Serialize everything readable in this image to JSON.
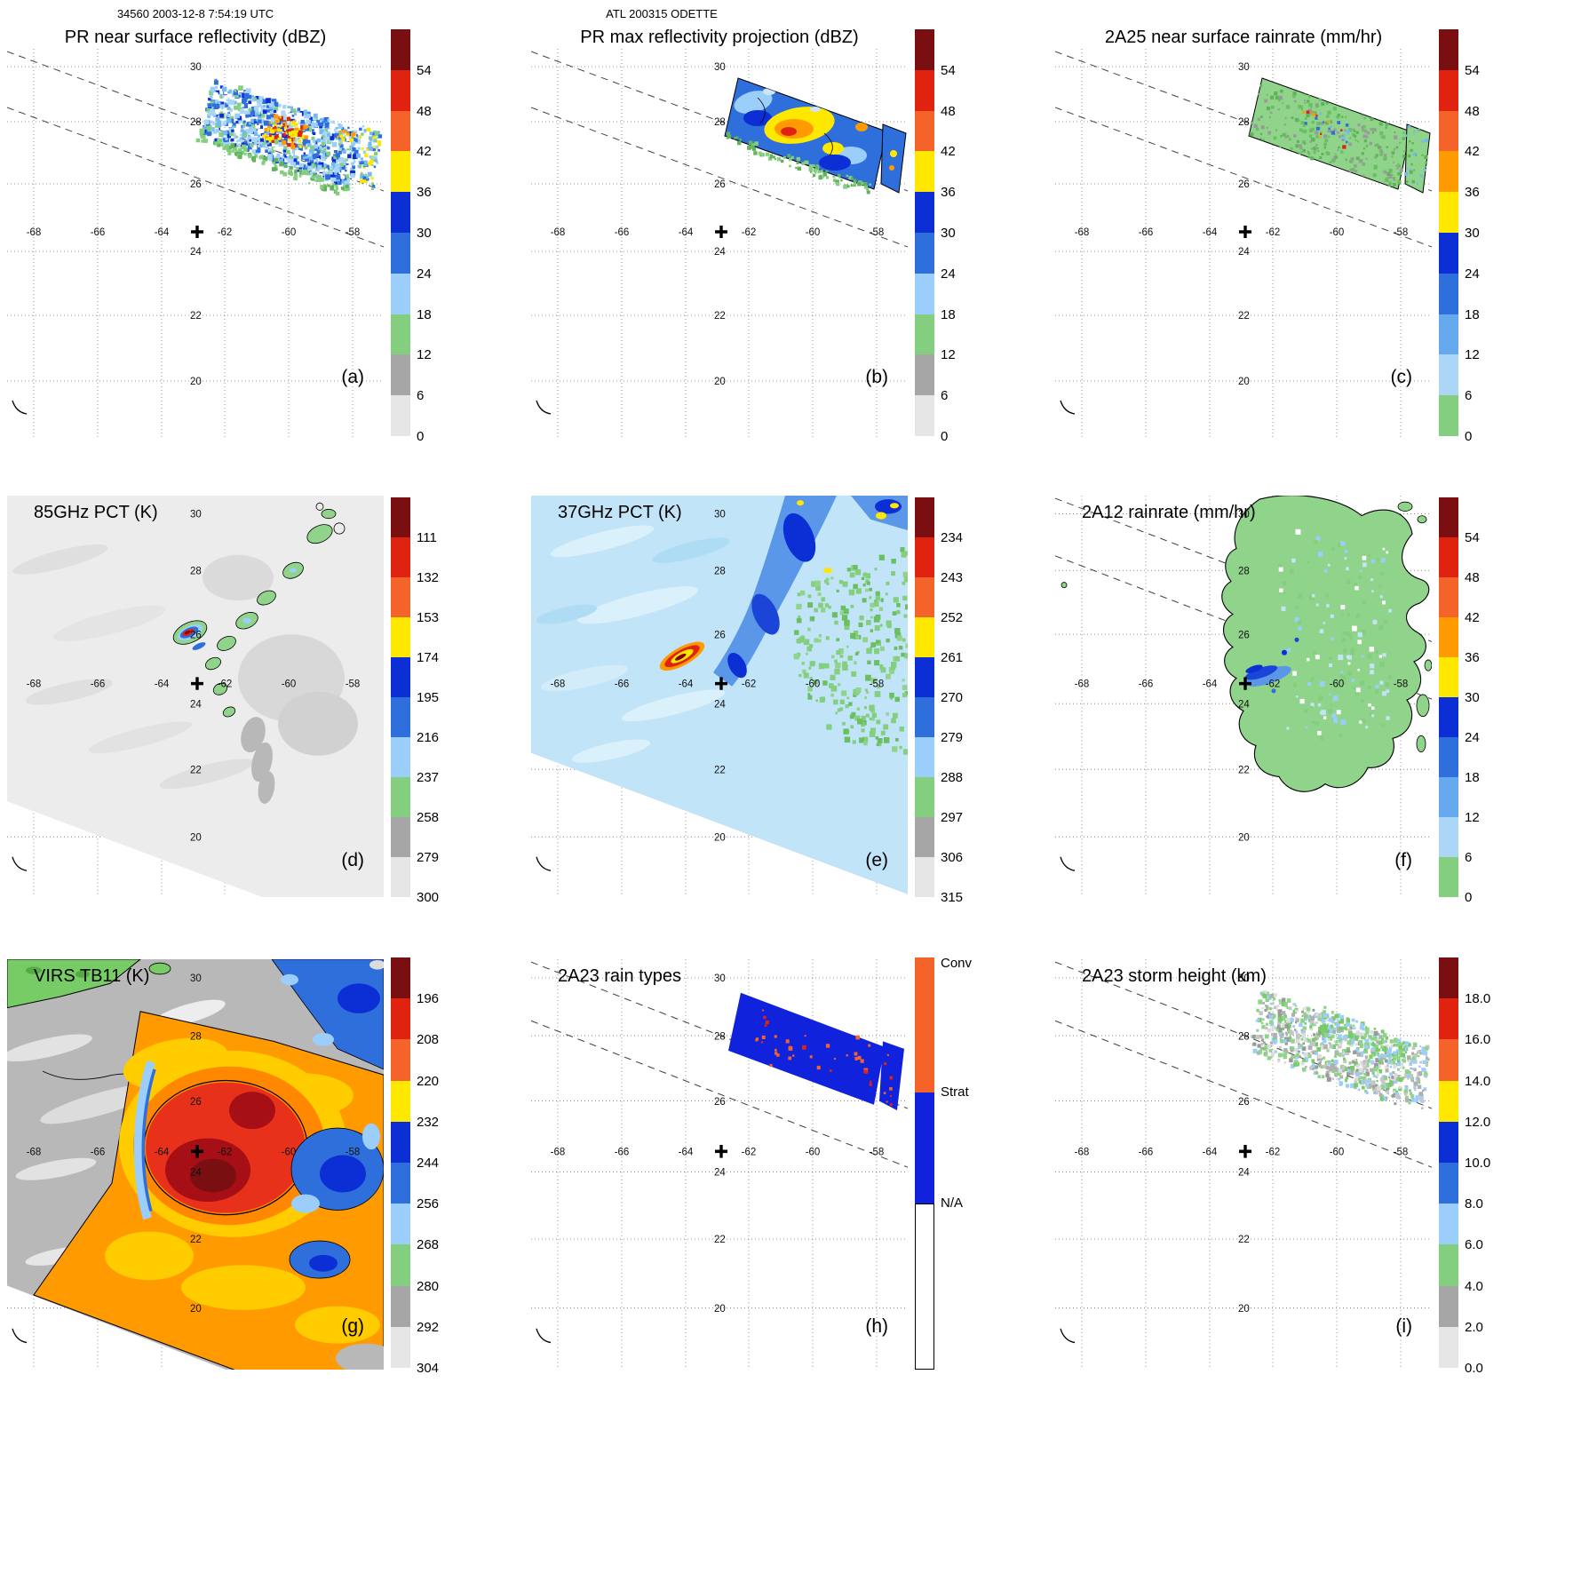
{
  "header": {
    "left": "34560 2003-12-8 7:54:19 UTC",
    "center": "ATL 200315 ODETTE"
  },
  "axes": {
    "lon_labels": [
      "-68",
      "-66",
      "-64",
      "-62",
      "-60",
      "-58"
    ],
    "lat_labels": [
      "30",
      "28",
      "26",
      "24",
      "22",
      "20"
    ]
  },
  "palettes": {
    "standard": [
      "#7a0f12",
      "#df2310",
      "#f4632a",
      "#ffe800",
      "#0b2fd4",
      "#2f6fdc",
      "#9ccefc",
      "#84cf7f",
      "#a6a6a6",
      "#e6e6e6"
    ],
    "rain": [
      "#7a0f12",
      "#df2310",
      "#f4632a",
      "#ff9a00",
      "#ffe800",
      "#0b2fd4",
      "#2f6fdc",
      "#66a9ee",
      "#abd6f6",
      "#84cf7f"
    ],
    "raintype": [
      "#f4632a",
      "#1122dd",
      "#ffffff"
    ]
  },
  "panels": [
    {
      "letter": "(a)",
      "title": "PR near surface reflectivity (dBZ)",
      "colorbar": {
        "palette": "standard",
        "ticks": [
          "54",
          "48",
          "42",
          "36",
          "30",
          "24",
          "18",
          "12",
          "6",
          "0"
        ]
      }
    },
    {
      "letter": "(b)",
      "title": "PR max reflectivity projection (dBZ)",
      "colorbar": {
        "palette": "standard",
        "ticks": [
          "54",
          "48",
          "42",
          "36",
          "30",
          "24",
          "18",
          "12",
          "6",
          "0"
        ]
      }
    },
    {
      "letter": "(c)",
      "title": "2A25 near surface rainrate (mm/hr)",
      "colorbar": {
        "palette": "rain",
        "ticks": [
          "54",
          "48",
          "42",
          "36",
          "30",
          "24",
          "18",
          "12",
          "6",
          "0"
        ]
      }
    },
    {
      "letter": "(d)",
      "title": "85GHz PCT (K)",
      "colorbar": {
        "palette": "standard",
        "ticks": [
          "111",
          "132",
          "153",
          "174",
          "195",
          "216",
          "237",
          "258",
          "279",
          "300"
        ]
      }
    },
    {
      "letter": "(e)",
      "title": "37GHz PCT (K)",
      "colorbar": {
        "palette": "standard",
        "ticks": [
          "234",
          "243",
          "252",
          "261",
          "270",
          "279",
          "288",
          "297",
          "306",
          "315"
        ]
      }
    },
    {
      "letter": "(f)",
      "title": "2A12 rainrate (mm/hr)",
      "colorbar": {
        "palette": "rain",
        "ticks": [
          "54",
          "48",
          "42",
          "36",
          "30",
          "24",
          "18",
          "12",
          "6",
          "0"
        ]
      }
    },
    {
      "letter": "(g)",
      "title": "VIRS TB11 (K)",
      "colorbar": {
        "palette": "standard",
        "ticks": [
          "196",
          "208",
          "220",
          "232",
          "244",
          "256",
          "268",
          "280",
          "292",
          "304"
        ]
      }
    },
    {
      "letter": "(h)",
      "title": "2A23 rain types",
      "colorbar": {
        "palette": "raintype",
        "labels": [
          "Conv",
          "Strat",
          "N/A"
        ]
      }
    },
    {
      "letter": "(i)",
      "title": "2A23 storm height (km)",
      "colorbar": {
        "palette": "standard",
        "ticks": [
          "18.0",
          "16.0",
          "14.0",
          "12.0",
          "10.0",
          "8.0",
          "6.0",
          "4.0",
          "2.0",
          "0.0"
        ]
      }
    }
  ],
  "map_overlays": {
    "storm_center_symbol": "+",
    "grid_lon": [
      -68,
      -66,
      -64,
      -62,
      -60,
      -58
    ],
    "grid_lat": [
      30,
      28,
      26,
      24,
      22,
      20
    ]
  },
  "chart_data": {
    "type": "heatmap",
    "figure_title": "TRMM orbit 34560 overpass of ATL 200315 ODETTE, 2003-12-8 7:54:19 UTC",
    "layout": "3x3 panel grid, each panel a lat/lon map with vertical colorbar at right",
    "projection": {
      "lon_range": [
        -69.6,
        -56.4
      ],
      "lat_range": [
        19,
        31
      ],
      "grid_spacing_deg": 2,
      "grid_style": "dotted graticule"
    },
    "storm_center": {
      "marker": "+",
      "lon": -63.1,
      "lat": 25.2
    },
    "swath_overlay": "two parallel dashed lines marking the PR swath edges cross every panel from upper left to lower right",
    "panels": [
      {
        "label": "(a)",
        "title": "PR near surface reflectivity",
        "units": "dBZ",
        "palette": "standard",
        "colorbar_ticks": [
          54,
          48,
          42,
          36,
          30,
          24,
          18,
          12,
          6,
          0
        ],
        "summary": "Narrow PR swath northeast of the storm center near 27-29N, 62-58W; speckled echoes mostly 18-35 dBZ with embedded convective cells of 36-48 dBZ near 28N 61W; a second small echo area near 27N 57.5W"
      },
      {
        "label": "(b)",
        "title": "PR max reflectivity projection",
        "units": "dBZ",
        "palette": "standard",
        "colorbar_ticks": [
          54,
          48,
          42,
          36,
          30,
          24,
          18,
          12,
          6,
          0
        ],
        "summary": "Same swath as (a) but filled; widespread 24-35 dBZ (blue) with a large 36-48 dBZ (yellow-orange) convective core near 27.8N 60.8W, outlined by black contours; green fringe of weak echo along the swath edges"
      },
      {
        "label": "(c)",
        "title": "2A25 near surface rainrate",
        "units": "mm/hr",
        "palette": "rain",
        "colorbar_ticks": [
          54,
          48,
          42,
          36,
          30,
          24,
          18,
          12,
          6,
          0
        ],
        "summary": "Rain area matching (a); predominantly light rain 0-6 mm/hr (green) with scattered pixels of 6-30 mm/hr and isolated heavier cells near the convective core"
      },
      {
        "label": "(d)",
        "title": "85GHz PCT",
        "units": "K",
        "palette": "standard",
        "colorbar_ticks": [
          111,
          132,
          153,
          174,
          195,
          216,
          237,
          258,
          279,
          300
        ],
        "summary": "Warm background 258-300 K (gray/white) over the TMI swath; arc of 216-258 K ice-scattering blobs (green, black-contoured) from 29N 59.5W to 25.5N 62.5W; small intense core reaching 111-174 K (blue/red) near 25.8N 63.4W"
      },
      {
        "label": "(e)",
        "title": "37GHz PCT",
        "units": "K",
        "palette": "standard",
        "colorbar_ticks": [
          234,
          243,
          252,
          261,
          270,
          279,
          288,
          297,
          306,
          315
        ],
        "summary": "Background 279-297 K (light blue) with green 288-297 K surface region east of 60W; cold band 261-279 K (blue) arcing from 30N 60W toward the center; compact convective core 234-252 K (red/yellow streak) near 25.7N 63.3W; small warm spots upper right"
      },
      {
        "label": "(f)",
        "title": "2A12 rainrate",
        "units": "mm/hr",
        "palette": "rain",
        "colorbar_ticks": [
          54,
          48,
          42,
          36,
          30,
          24,
          18,
          12,
          6,
          0
        ],
        "summary": "Large black-contoured raining region of 0-6 mm/hr (green) covering 24-30N, 62-57W; banded 6-24 mm/hr streak (blue) near 25.5N 63.3W; small rain fragments along the right edge"
      },
      {
        "label": "(g)",
        "title": "VIRS TB11",
        "units": "K",
        "palette": "standard",
        "colorbar_ticks": [
          196,
          208,
          220,
          232,
          244,
          256,
          268,
          280,
          292,
          304
        ],
        "summary": "Large cold cirrus shield below 220 K (red) centered near 25N 62.5W with core below 208 K (dark red); 232-256 K anvil edges (blue) to the northeast and east; warm mostly clear air 280-304 K (gray) northwest; 256-268 K low cloud (green strip) along the top left; data cut off along a diagonal swath edge lower left"
      },
      {
        "label": "(h)",
        "title": "2A23 rain types",
        "units": "category",
        "palette": "raintype",
        "categories": [
          "Conv",
          "Strat",
          "N/A"
        ],
        "summary": "PR swath rain area is predominantly stratiform (blue) with scattered convective pixels (orange-red) concentrated near the core and along the southern edge; small stratiform fragment near 27N 57.5W"
      },
      {
        "label": "(i)",
        "title": "2A23 storm height",
        "units": "km",
        "palette": "standard",
        "colorbar_ticks": [
          18.0,
          16.0,
          14.0,
          12.0,
          10.0,
          8.0,
          6.0,
          4.0,
          2.0,
          0.0
        ],
        "summary": "Speckled storm heights over the PR swath, mostly 2-6 km (gray/green) with scattered 6-10 km tops (light blue) and a few higher towers near the convective core"
      }
    ]
  }
}
